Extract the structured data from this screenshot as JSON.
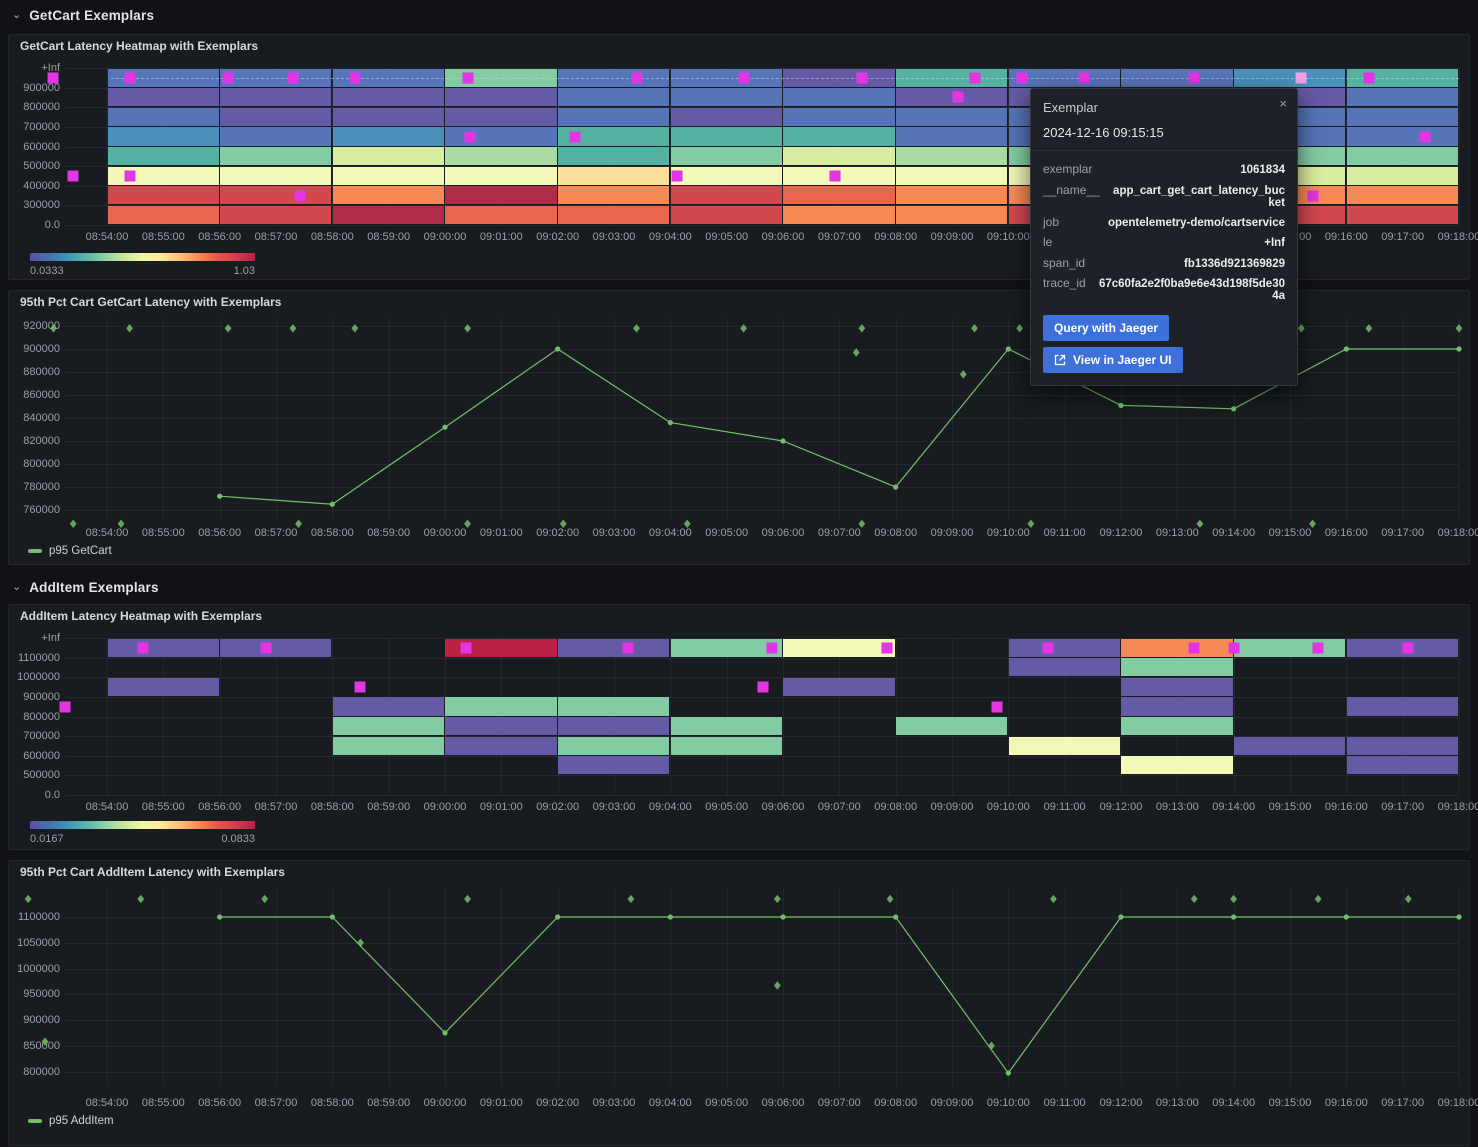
{
  "page": {
    "bg": "#111217",
    "panel_bg": "#181b1f"
  },
  "sections": [
    {
      "title": "GetCart Exemplars"
    },
    {
      "title": "AddItem Exemplars"
    }
  ],
  "x_ticks": [
    "08:54:00",
    "08:55:00",
    "08:56:00",
    "08:57:00",
    "08:58:00",
    "08:59:00",
    "09:00:00",
    "09:01:00",
    "09:02:00",
    "09:03:00",
    "09:04:00",
    "09:05:00",
    "09:06:00",
    "09:07:00",
    "09:08:00",
    "09:09:00",
    "09:10:00",
    "09:11:00",
    "09:12:00",
    "09:13:00",
    "09:14:00",
    "09:15:00",
    "09:16:00",
    "09:17:00",
    "09:18:00"
  ],
  "colors": {
    "exemplar": "#e435e4",
    "exemplar_hover": "#efa3e6",
    "series_green": "#73bf69",
    "button_blue": "#3d71d9",
    "palette": {
      "purple": "#655aa5",
      "blue": "#5674b8",
      "tealblue": "#4b90bb",
      "teal": "#55b2a2",
      "green": "#83cba3",
      "lightgreen": "#abdba4",
      "yellowgreen": "#d9eda2",
      "paleyellow": "#f3f8b8",
      "peach": "#fcdf9c",
      "orange": "#f58a54",
      "redorange": "#e8654f",
      "red": "#d2484f",
      "darkred": "#b02d49",
      "crimson": "#bb2145"
    },
    "spectral_gradient": [
      "#5e4fa2",
      "#4470b1",
      "#3d94b8",
      "#5bb6a9",
      "#8ed0a4",
      "#c7e89e",
      "#f0f9a7",
      "#fee899",
      "#fdbf6f",
      "#f88c51",
      "#e65948",
      "#d03a4e",
      "#b42346"
    ]
  },
  "chart_data": [
    {
      "type": "heatmap",
      "title": "GetCart Latency Heatmap with Exemplars",
      "y_ticks": [
        "+Inf",
        "900000",
        "800000",
        "700000",
        "600000",
        "500000",
        "400000",
        "300000",
        "0.0"
      ],
      "scale_min": "0.0333",
      "scale_max": "1.03",
      "column_minutes": [
        0,
        2,
        4,
        6,
        8,
        10,
        12,
        14,
        16,
        18,
        20,
        22
      ],
      "columns": [
        [
          "blue",
          "purple",
          "blue",
          "tealblue",
          "teal",
          "paleyellow",
          "red",
          "redorange"
        ],
        [
          "blue",
          "purple",
          "purple",
          "blue",
          "green",
          "paleyellow",
          "red",
          "red"
        ],
        [
          "blue",
          "purple",
          "purple",
          "tealblue",
          "yellowgreen",
          "paleyellow",
          "orange",
          "darkred"
        ],
        [
          "green",
          "purple",
          "purple",
          "blue",
          "lightgreen",
          "paleyellow",
          "darkred",
          "redorange"
        ],
        [
          "blue",
          "blue",
          "blue",
          "teal",
          "teal",
          "peach",
          "orange",
          "redorange"
        ],
        [
          "blue",
          "blue",
          "purple",
          "teal",
          "green",
          "paleyellow",
          "red",
          "red"
        ],
        [
          "purple",
          "blue",
          "blue",
          "teal",
          "yellowgreen",
          "paleyellow",
          "redorange",
          "orange"
        ],
        [
          "teal",
          "purple",
          "blue",
          "blue",
          "lightgreen",
          "paleyellow",
          "orange",
          "orange"
        ],
        [
          "blue",
          "purple",
          "blue",
          "blue",
          "green",
          "paleyellow",
          "orange",
          "red"
        ],
        [
          "blue",
          "purple",
          "blue",
          "blue",
          "green",
          "paleyellow",
          "orange",
          "red"
        ],
        [
          "tealblue",
          "purple",
          "blue",
          "blue",
          "green",
          "yellowgreen",
          "orange",
          "red"
        ],
        [
          "teal",
          "blue",
          "blue",
          "blue",
          "green",
          "yellowgreen",
          "orange",
          "red"
        ]
      ],
      "exemplars": [
        [
          -0.95,
          0
        ],
        [
          0.4,
          0
        ],
        [
          2.15,
          0
        ],
        [
          3.3,
          0
        ],
        [
          4.4,
          0
        ],
        [
          6.4,
          0
        ],
        [
          9.4,
          0
        ],
        [
          11.3,
          0
        ],
        [
          13.4,
          0
        ],
        [
          15.4,
          0
        ],
        [
          16.25,
          0
        ],
        [
          17.35,
          0
        ],
        [
          19.3,
          0
        ],
        [
          22.4,
          0
        ],
        [
          15.1,
          1
        ],
        [
          6.44,
          3
        ],
        [
          8.3,
          3
        ],
        [
          23.4,
          3
        ],
        [
          -0.6,
          5
        ],
        [
          0.41,
          5
        ],
        [
          10.12,
          5
        ],
        [
          12.93,
          5
        ],
        [
          3.43,
          6
        ],
        [
          21.4,
          6
        ]
      ],
      "hovered_exemplar": [
        21.2,
        0
      ]
    },
    {
      "type": "line",
      "title": "95th Pct Cart GetCart Latency with Exemplars",
      "legend": "p95 GetCart",
      "y_ticks": [
        920000,
        900000,
        880000,
        860000,
        840000,
        820000,
        800000,
        780000,
        760000
      ],
      "x_minutes": [
        2,
        4,
        6,
        8,
        10,
        12,
        14,
        16,
        18,
        20,
        22,
        24
      ],
      "values": [
        772000,
        765000,
        832000,
        900000,
        836000,
        820000,
        780000,
        900000,
        851000,
        848000,
        900000,
        900000
      ],
      "exemplar_diamonds": {
        "top_value": 918000,
        "top_times": [
          -0.95,
          0.4,
          2.15,
          3.3,
          4.4,
          6.4,
          9.4,
          11.3,
          13.4,
          15.4,
          16.2,
          21.2,
          22.4,
          24.0
        ],
        "bottom_value": 748000,
        "bottom_times": [
          -0.6,
          0.25,
          3.4,
          6.4,
          8.1,
          10.3,
          13.4,
          16.4,
          19.4,
          21.4
        ],
        "other": [
          [
            13.3,
            897000
          ],
          [
            15.2,
            878000
          ]
        ]
      }
    },
    {
      "type": "heatmap",
      "title": "AddItem Latency Heatmap with Exemplars",
      "y_ticks": [
        "+Inf",
        "1100000",
        "1000000",
        "900000",
        "800000",
        "700000",
        "600000",
        "500000",
        "0.0"
      ],
      "scale_min": "0.0167",
      "scale_max": "0.0833",
      "column_minutes": [
        0,
        2,
        4,
        6,
        8,
        10,
        12,
        14,
        16,
        18,
        20,
        22
      ],
      "columns": [
        [
          "purple",
          null,
          "purple",
          null,
          null,
          null,
          null,
          null
        ],
        [
          "purple",
          null,
          null,
          null,
          null,
          null,
          null,
          null
        ],
        [
          null,
          null,
          null,
          "purple",
          "green",
          "green",
          null,
          null
        ],
        [
          "crimson",
          null,
          null,
          "green",
          "purple",
          "purple",
          null,
          null
        ],
        [
          "purple",
          null,
          null,
          "green",
          "purple",
          "green",
          "purple",
          null
        ],
        [
          "green",
          null,
          null,
          null,
          "green",
          "green",
          null,
          null
        ],
        [
          "paleyellow",
          null,
          "purple",
          null,
          null,
          null,
          null,
          null
        ],
        [
          null,
          null,
          null,
          null,
          "green",
          null,
          null,
          null
        ],
        [
          "purple",
          "purple",
          null,
          null,
          null,
          "paleyellow",
          null,
          null
        ],
        [
          "orange",
          "green",
          "purple",
          "purple",
          "green",
          null,
          "paleyellow",
          null
        ],
        [
          "green",
          null,
          null,
          null,
          null,
          "purple",
          null,
          null
        ],
        [
          "purple",
          null,
          null,
          "purple",
          null,
          "purple",
          "purple",
          null
        ]
      ],
      "exemplars": [
        [
          0.64,
          0
        ],
        [
          2.82,
          0
        ],
        [
          6.38,
          0
        ],
        [
          9.25,
          0
        ],
        [
          11.8,
          0
        ],
        [
          13.84,
          0
        ],
        [
          16.7,
          0
        ],
        [
          19.3,
          0
        ],
        [
          20.0,
          0
        ],
        [
          21.5,
          0
        ],
        [
          23.1,
          0
        ],
        [
          4.49,
          2
        ],
        [
          11.65,
          2
        ],
        [
          -0.75,
          3
        ],
        [
          15.8,
          3
        ]
      ],
      "hovered_exemplar": null
    },
    {
      "type": "line",
      "title": "95th Pct Cart AddItem Latency with Exemplars",
      "legend": "p95 AddItem",
      "y_ticks": [
        1100000,
        1050000,
        1000000,
        950000,
        900000,
        850000,
        800000
      ],
      "x_minutes": [
        2,
        4,
        6,
        8,
        10,
        12,
        14,
        16,
        18,
        20,
        22,
        24
      ],
      "values": [
        1100000,
        1100000,
        875000,
        1100000,
        1100000,
        1100000,
        1100000,
        797000,
        1100000,
        1100000,
        1100000,
        1100000
      ],
      "exemplar_diamonds": {
        "top_value": 1135000,
        "top_times": [
          -1.4,
          0.6,
          2.8,
          6.4,
          9.3,
          11.9,
          13.9,
          16.8,
          19.3,
          20.0,
          21.5,
          23.1
        ],
        "bottom_value": null,
        "bottom_times": [],
        "other": [
          [
            -1.1,
            858000
          ],
          [
            4.5,
            1050000
          ],
          [
            11.9,
            967000
          ],
          [
            15.7,
            850000
          ]
        ]
      }
    }
  ],
  "tooltip": {
    "title": "Exemplar",
    "close": "×",
    "timestamp": "2024-12-16 09:15:15",
    "rows": [
      {
        "key": "exemplar",
        "value": "1061834"
      },
      {
        "key": "__name__",
        "value": "app_cart_get_cart_latency_bucket"
      },
      {
        "key": "job",
        "value": "opentelemetry-demo/cartservice"
      },
      {
        "key": "le",
        "value": "+Inf"
      },
      {
        "key": "span_id",
        "value": "fb1336d921369829"
      },
      {
        "key": "trace_id",
        "value": "67c60fa2e2f0ba9e6e43d198f5de304a"
      }
    ],
    "buttons": [
      {
        "label": "Query with Jaeger",
        "icon": null
      },
      {
        "label": "View in Jaeger UI",
        "icon": "external-link-icon"
      }
    ]
  }
}
